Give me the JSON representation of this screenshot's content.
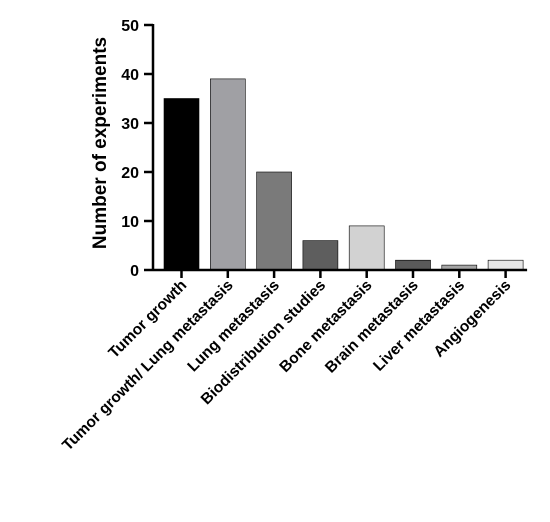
{
  "chart_data": {
    "type": "bar",
    "categories": [
      "Tumor growth",
      "Tumor growth/ Lung metastasis",
      "Lung metastasis",
      "Biodistribution studies",
      "Bone metastasis",
      "Brain metastasis",
      "Liver metastasis",
      "Angiogenesis"
    ],
    "values": [
      35,
      39,
      20,
      6,
      9,
      2,
      1,
      2
    ],
    "colors": [
      "#000000",
      "#a0a0a4",
      "#7a7a7a",
      "#5e5e5e",
      "#d2d2d2",
      "#5a5a5a",
      "#a5a5a5",
      "#e6e6e6"
    ],
    "title": "",
    "xlabel": "",
    "ylabel": "Number of experiments",
    "ylim": [
      0,
      50
    ],
    "yticks": [
      0,
      10,
      20,
      30,
      40,
      50
    ],
    "grid": false,
    "legend": "none"
  }
}
